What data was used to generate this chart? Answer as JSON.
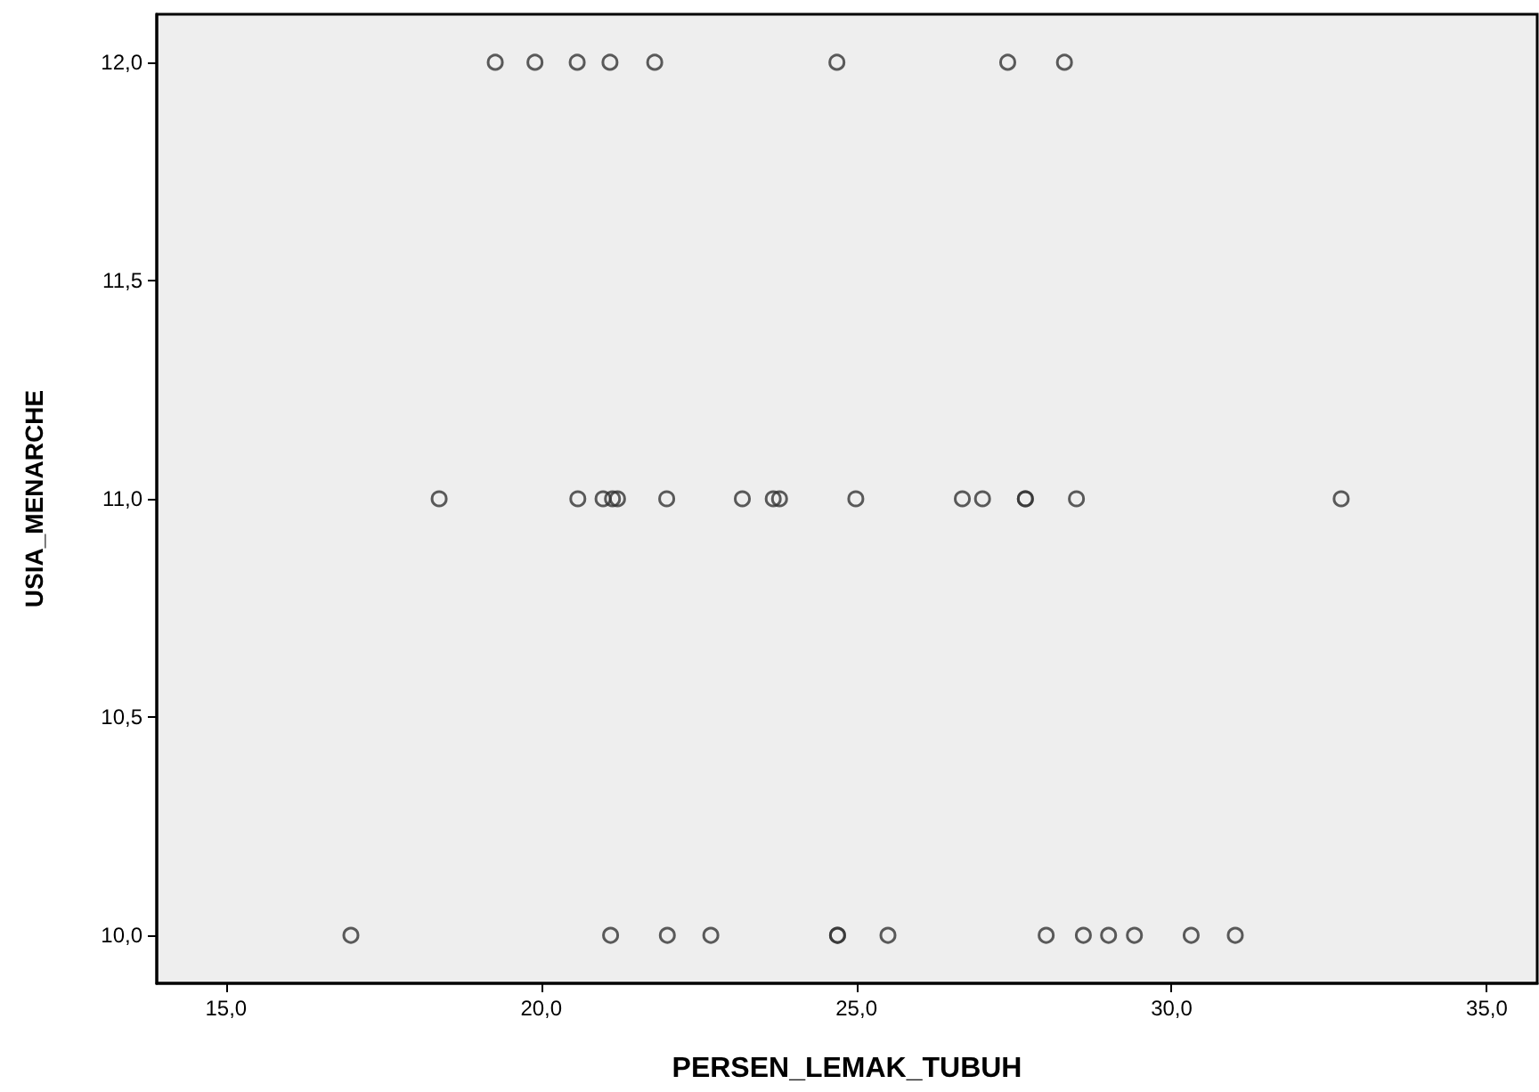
{
  "chart_data": {
    "type": "scatter",
    "xlabel": "PERSEN_LEMAK_TUBUH",
    "ylabel": "USIA_MENARCHE",
    "x": [
      19.27,
      19.9,
      20.57,
      21.09,
      21.8,
      24.69,
      27.4,
      28.3,
      18.38,
      20.58,
      20.98,
      21.13,
      21.21,
      21.99,
      23.19,
      23.68,
      23.78,
      24.99,
      26.68,
      27.0,
      27.68,
      27.68,
      28.49,
      32.69,
      16.98,
      21.1,
      22.0,
      22.69,
      24.7,
      24.7,
      25.5,
      28.01,
      28.6,
      29.0,
      29.41,
      30.31,
      31.01
    ],
    "values": [
      12,
      12,
      12,
      12,
      12,
      12,
      12,
      12,
      11,
      11,
      11,
      11,
      11,
      11,
      11,
      11,
      11,
      11,
      11,
      11,
      11,
      11,
      11,
      11,
      10,
      10,
      10,
      10,
      10,
      10,
      10,
      10,
      10,
      10,
      10,
      10,
      10
    ],
    "color": "#333333",
    "marker": "circle",
    "grid": false,
    "xlim": [
      13.9,
      35.8
    ],
    "xticks": [
      {
        "value": 15,
        "label": "15,0"
      },
      {
        "value": 20,
        "label": "20,0"
      },
      {
        "value": 25,
        "label": "25,0"
      },
      {
        "value": 30,
        "label": "30,0"
      },
      {
        "value": 35,
        "label": "35,0"
      }
    ],
    "ylim": [
      9.89,
      12.11
    ],
    "yticks": [
      {
        "value": 10,
        "label": "10,0"
      },
      {
        "value": 10.5,
        "label": "10,5"
      },
      {
        "value": 11,
        "label": "11,0"
      },
      {
        "value": 11.5,
        "label": "11,5"
      },
      {
        "value": 12,
        "label": "12,0"
      }
    ]
  }
}
